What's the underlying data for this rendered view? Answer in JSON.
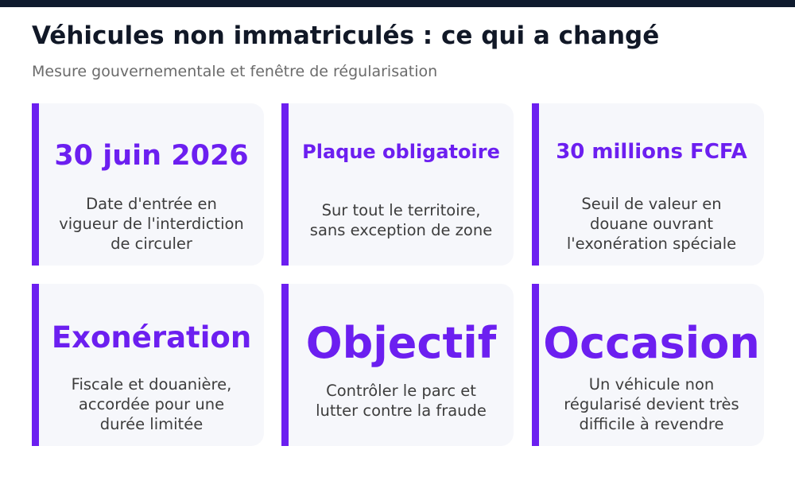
{
  "colors": {
    "top_bar": "#0f1a2e",
    "title": "#111827",
    "subtitle": "#6b6b6b",
    "card_bg": "#f6f7fb",
    "accent": "#6c1ff0",
    "headline": "#6c1ff0",
    "desc": "#3d3d3d"
  },
  "header": {
    "title": "Véhicules non immatriculés : ce qui a changé",
    "subtitle": "Mesure gouvernementale et fenêtre de régularisation"
  },
  "cards": [
    {
      "headline": "30 juin 2026",
      "desc_lines": [
        "Date d'entrée en",
        "vigueur de l'interdiction",
        "de circuler"
      ]
    },
    {
      "headline": "Plaque obligatoire",
      "desc_lines": [
        "Sur tout le territoire,",
        "sans exception de zone"
      ]
    },
    {
      "headline": "30 millions FCFA",
      "desc_lines": [
        "Seuil de valeur en",
        "douane ouvrant",
        "l'exonération spéciale"
      ]
    },
    {
      "headline": "Exonération",
      "desc_lines": [
        "Fiscale et douanière,",
        "accordée pour une",
        "durée limitée"
      ]
    },
    {
      "headline": "Objectif",
      "desc_lines": [
        "Contrôler le parc et",
        "lutter contre la fraude"
      ]
    },
    {
      "headline": "Occasion",
      "desc_lines": [
        "Un véhicule non",
        "régularisé devient très",
        "difficile à revendre"
      ]
    }
  ]
}
